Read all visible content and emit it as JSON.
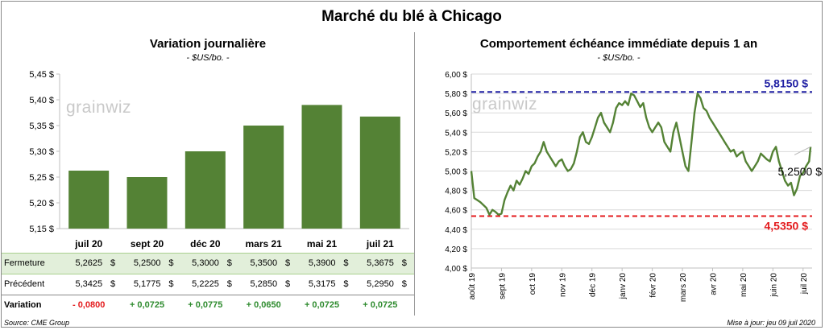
{
  "page": {
    "title": "Marché du blé à Chicago",
    "source": "Source: CME Group",
    "updated": "Mise à jour: jeu 09 juil 2020",
    "watermark": "grainwiz"
  },
  "colors": {
    "bar": "#548235",
    "line": "#548235",
    "max_line": "#1f1fa3",
    "min_line": "#e31a1c",
    "positive": "#2e8b2e",
    "negative": "#e31a1c",
    "table_highlight": "#e2efda"
  },
  "chart_data": [
    {
      "type": "bar",
      "title": "Variation journalière",
      "unit": "- $US/bo. -",
      "categories": [
        "juil 20",
        "sept 20",
        "déc 20",
        "mars 21",
        "mai 21",
        "juil 21"
      ],
      "values": [
        5.2625,
        5.25,
        5.3,
        5.35,
        5.39,
        5.3675
      ],
      "ylim": [
        5.15,
        5.45
      ],
      "yticks": [
        5.15,
        5.2,
        5.25,
        5.3,
        5.35,
        5.4,
        5.45
      ],
      "ytick_labels": [
        "5,15 $",
        "5,20 $",
        "5,25 $",
        "5,30 $",
        "5,35 $",
        "5,40 $",
        "5,45 $"
      ],
      "table": {
        "rows": [
          {
            "label": "Fermeture",
            "values": [
              "5,2625",
              "5,2500",
              "5,3000",
              "5,3500",
              "5,3900",
              "5,3675"
            ],
            "currency": "$"
          },
          {
            "label": "Précédent",
            "values": [
              "5,3425",
              "5,1775",
              "5,2225",
              "5,2850",
              "5,3175",
              "5,2950"
            ],
            "currency": "$"
          },
          {
            "label": "Variation",
            "values": [
              "- 0,0800",
              "+ 0,0725",
              "+ 0,0775",
              "+ 0,0650",
              "+ 0,0725",
              "+ 0,0725"
            ],
            "signs": [
              "negative",
              "positive",
              "positive",
              "positive",
              "positive",
              "positive"
            ]
          }
        ]
      }
    },
    {
      "type": "line",
      "title": "Comportement  échéance immédiate depuis 1 an",
      "unit": "- $US/bo. -",
      "ylim": [
        4.0,
        6.0
      ],
      "yticks": [
        4.0,
        4.2,
        4.4,
        4.6,
        4.8,
        5.0,
        5.2,
        5.4,
        5.6,
        5.8,
        6.0
      ],
      "ytick_labels": [
        "4,00 $",
        "4,20 $",
        "4,40 $",
        "4,60 $",
        "4,80 $",
        "5,00 $",
        "5,20 $",
        "5,40 $",
        "5,60 $",
        "5,80 $",
        "6,00 $"
      ],
      "x_labels": [
        "août 19",
        "sept 19",
        "oct 19",
        "nov 19",
        "déc 19",
        "janv 20",
        "févr 20",
        "mars 20",
        "avr 20",
        "mai 20",
        "juin 20",
        "juil 20"
      ],
      "x_range_months": [
        0,
        11.3
      ],
      "series": [
        {
          "x": [
            0,
            0.1,
            0.2,
            0.3,
            0.4,
            0.5,
            0.6,
            0.7,
            0.8,
            0.9,
            1.0,
            1.1,
            1.2,
            1.3,
            1.4,
            1.5,
            1.6,
            1.7,
            1.8,
            1.9,
            2.0,
            2.1,
            2.2,
            2.3,
            2.4,
            2.5,
            2.6,
            2.7,
            2.8,
            2.9,
            3.0,
            3.1,
            3.2,
            3.3,
            3.4,
            3.5,
            3.6,
            3.7,
            3.8,
            3.9,
            4.0,
            4.1,
            4.2,
            4.3,
            4.4,
            4.5,
            4.6,
            4.7,
            4.8,
            4.9,
            5.0,
            5.1,
            5.2,
            5.3,
            5.4,
            5.5,
            5.6,
            5.7,
            5.8,
            5.9,
            6.0,
            6.1,
            6.2,
            6.3,
            6.4,
            6.5,
            6.6,
            6.7,
            6.8,
            6.9,
            7.0,
            7.1,
            7.2,
            7.3,
            7.4,
            7.5,
            7.6,
            7.7,
            7.8,
            7.9,
            8.0,
            8.1,
            8.2,
            8.3,
            8.4,
            8.5,
            8.6,
            8.7,
            8.8,
            8.9,
            9.0,
            9.1,
            9.2,
            9.3,
            9.4,
            9.5,
            9.6,
            9.7,
            9.8,
            9.9,
            10.0,
            10.1,
            10.2,
            10.3,
            10.4,
            10.5,
            10.6,
            10.7,
            10.8,
            10.9,
            11.0,
            11.1,
            11.2,
            11.25
          ],
          "y": [
            5.0,
            4.72,
            4.7,
            4.68,
            4.65,
            4.62,
            4.55,
            4.6,
            4.58,
            4.55,
            4.56,
            4.7,
            4.78,
            4.85,
            4.8,
            4.9,
            4.86,
            4.92,
            5.0,
            4.97,
            5.05,
            5.08,
            5.15,
            5.2,
            5.3,
            5.2,
            5.15,
            5.1,
            5.05,
            5.1,
            5.12,
            5.05,
            5.0,
            5.02,
            5.08,
            5.2,
            5.35,
            5.4,
            5.3,
            5.28,
            5.35,
            5.45,
            5.55,
            5.6,
            5.5,
            5.45,
            5.4,
            5.5,
            5.65,
            5.7,
            5.68,
            5.72,
            5.68,
            5.8,
            5.78,
            5.72,
            5.66,
            5.7,
            5.55,
            5.45,
            5.4,
            5.45,
            5.5,
            5.45,
            5.3,
            5.25,
            5.2,
            5.4,
            5.5,
            5.35,
            5.2,
            5.05,
            5.0,
            5.3,
            5.6,
            5.8,
            5.75,
            5.65,
            5.62,
            5.55,
            5.5,
            5.45,
            5.4,
            5.35,
            5.3,
            5.25,
            5.2,
            5.22,
            5.15,
            5.18,
            5.2,
            5.1,
            5.05,
            5.0,
            5.05,
            5.1,
            5.18,
            5.15,
            5.12,
            5.1,
            5.2,
            5.25,
            5.1,
            5.0,
            4.9,
            4.85,
            4.88,
            4.75,
            4.82,
            4.95,
            4.98,
            5.05,
            5.1,
            5.25
          ]
        }
      ],
      "reference_lines": [
        {
          "value": 5.815,
          "label": "5,8150 $",
          "kind": "max"
        },
        {
          "value": 4.535,
          "label": "4,5350 $",
          "kind": "min"
        }
      ],
      "last_value_label": "5,2500 $"
    }
  ]
}
